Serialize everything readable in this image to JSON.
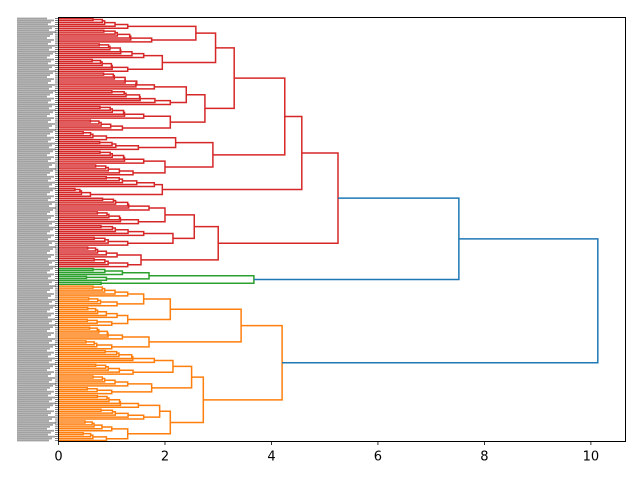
{
  "chart_data": {
    "type": "dendrogram",
    "orientation": "right",
    "title": "",
    "xlabel": "",
    "ylabel": "",
    "xlim": [
      0,
      10.65
    ],
    "x_ticks": [
      0,
      2,
      4,
      6,
      8,
      10
    ],
    "x_tick_labels": [
      "0",
      "2",
      "4",
      "6",
      "8",
      "10"
    ],
    "leaf_labels_legible": false,
    "colors": {
      "above_threshold": "#1f77b4",
      "cluster_red": "#d62728",
      "cluster_green": "#2ca02c",
      "cluster_orange": "#ff7f0e"
    },
    "tree": {
      "h": 10.13,
      "c": "above_threshold",
      "children": [
        {
          "h": 7.52,
          "c": "above_threshold",
          "children": [
            {
              "h": 5.25,
              "c": "cluster_red",
              "children": [
                {
                  "h": 4.57,
                  "c": "cluster_red",
                  "children": [
                    {
                      "h": 4.25,
                      "c": "cluster_red",
                      "children": [
                        {
                          "h": 3.3,
                          "c": "cluster_red",
                          "children": [
                            {
                              "h": 2.95,
                              "c": "cluster_red",
                              "children": [
                                {
                                  "h": 2.58,
                                  "c": "cluster_red",
                                  "children": [
                                    {
                                      "leaves": 6,
                                      "h": 1.3
                                    },
                                    {
                                      "leaves": 7,
                                      "h": 1.75
                                    }
                                  ]
                                },
                                {
                                  "h": 1.95,
                                  "c": "cluster_red",
                                  "children": [
                                    {
                                      "leaves": 8,
                                      "h": 1.6
                                    },
                                    {
                                      "leaves": 7,
                                      "h": 1.3
                                    }
                                  ]
                                }
                              ]
                            },
                            {
                              "h": 2.75,
                              "c": "cluster_red",
                              "children": [
                                {
                                  "h": 2.4,
                                  "c": "cluster_red",
                                  "children": [
                                    {
                                      "leaves": 9,
                                      "h": 1.8
                                    },
                                    {
                                      "leaves": 8,
                                      "h": 2.1
                                    }
                                  ]
                                },
                                {
                                  "h": 2.1,
                                  "c": "cluster_red",
                                  "children": [
                                    {
                                      "leaves": 7,
                                      "h": 1.6
                                    },
                                    {
                                      "leaves": 6,
                                      "h": 1.2
                                    }
                                  ]
                                }
                              ]
                            }
                          ]
                        },
                        {
                          "h": 2.9,
                          "c": "cluster_red",
                          "children": [
                            {
                              "h": 2.2,
                              "c": "cluster_red",
                              "children": [
                                {
                                  "leaves": 5,
                                  "h": 0.9
                                },
                                {
                                  "leaves": 5,
                                  "h": 1.5
                                }
                              ]
                            },
                            {
                              "h": 2.0,
                              "c": "cluster_red",
                              "children": [
                                {
                                  "leaves": 7,
                                  "h": 1.6
                                },
                                {
                                  "leaves": 6,
                                  "h": 1.4
                                }
                              ]
                            }
                          ]
                        }
                      ]
                    },
                    {
                      "h": 1.95,
                      "c": "cluster_red",
                      "children": [
                        {
                          "leaves": 6,
                          "h": 1.8
                        },
                        {
                          "leaves": 5,
                          "h": 0.6
                        }
                      ]
                    }
                  ]
                },
                {
                  "h": 3.0,
                  "c": "cluster_red",
                  "children": [
                    {
                      "h": 2.55,
                      "c": "cluster_red",
                      "children": [
                        {
                          "h": 2.0,
                          "c": "cluster_red",
                          "children": [
                            {
                              "leaves": 7,
                              "h": 1.7
                            },
                            {
                              "leaves": 7,
                              "h": 1.5
                            }
                          ]
                        },
                        {
                          "h": 2.15,
                          "c": "cluster_red",
                          "children": [
                            {
                              "leaves": 6,
                              "h": 1.6
                            },
                            {
                              "leaves": 5,
                              "h": 1.3
                            }
                          ]
                        }
                      ]
                    },
                    {
                      "h": 1.55,
                      "c": "cluster_red",
                      "children": [
                        {
                          "leaves": 6,
                          "h": 1.1
                        },
                        {
                          "leaves": 5,
                          "h": 1.3
                        }
                      ]
                    }
                  ]
                }
              ]
            },
            {
              "h": 3.67,
              "c": "cluster_green",
              "children": [
                {
                  "h": 1.7,
                  "c": "cluster_green",
                  "children": [
                    {
                      "leaves": 4,
                      "h": 1.2
                    },
                    {
                      "leaves": 3,
                      "h": 0.9
                    }
                  ]
                },
                {
                  "leaves": 2,
                  "h": 0.8
                }
              ]
            }
          ]
        },
        {
          "h": 4.2,
          "c": "cluster_orange",
          "children": [
            {
              "h": 3.43,
              "c": "cluster_orange",
              "children": [
                {
                  "h": 2.1,
                  "c": "cluster_orange",
                  "children": [
                    {
                      "h": 1.6,
                      "c": "cluster_orange",
                      "children": [
                        {
                          "leaves": 6,
                          "h": 1.3
                        },
                        {
                          "leaves": 5,
                          "h": 1.1
                        }
                      ]
                    },
                    {
                      "h": 1.3,
                      "c": "cluster_orange",
                      "children": [
                        {
                          "leaves": 6,
                          "h": 1.1
                        },
                        {
                          "leaves": 4,
                          "h": 1.0
                        }
                      ]
                    }
                  ]
                },
                {
                  "h": 1.7,
                  "c": "cluster_orange",
                  "children": [
                    {
                      "leaves": 7,
                      "h": 1.2
                    },
                    {
                      "leaves": 5,
                      "h": 1.0
                    }
                  ]
                }
              ]
            },
            {
              "h": 2.72,
              "c": "cluster_orange",
              "children": [
                {
                  "h": 2.5,
                  "c": "cluster_orange",
                  "children": [
                    {
                      "h": 2.15,
                      "c": "cluster_orange",
                      "children": [
                        {
                          "leaves": 7,
                          "h": 1.8
                        },
                        {
                          "leaves": 6,
                          "h": 1.4
                        }
                      ]
                    },
                    {
                      "h": 1.75,
                      "c": "cluster_orange",
                      "children": [
                        {
                          "leaves": 6,
                          "h": 1.3
                        },
                        {
                          "leaves": 4,
                          "h": 1.0
                        }
                      ]
                    }
                  ]
                },
                {
                  "h": 2.1,
                  "c": "cluster_orange",
                  "children": [
                    {
                      "h": 1.9,
                      "c": "cluster_orange",
                      "children": [
                        {
                          "leaves": 7,
                          "h": 1.5
                        },
                        {
                          "leaves": 6,
                          "h": 1.6
                        }
                      ]
                    },
                    {
                      "h": 1.3,
                      "c": "cluster_orange",
                      "children": [
                        {
                          "leaves": 6,
                          "h": 1.0
                        },
                        {
                          "leaves": 5,
                          "h": 0.9
                        }
                      ]
                    }
                  ]
                }
              ]
            }
          ]
        }
      ]
    }
  }
}
